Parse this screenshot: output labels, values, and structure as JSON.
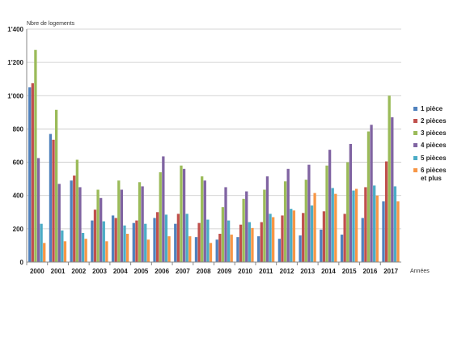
{
  "chart_data": {
    "type": "bar",
    "ylabel": "Nbre de logements",
    "xlabel": "Années",
    "ylim": [
      0,
      1400
    ],
    "yticks": [
      0,
      200,
      400,
      600,
      800,
      1000,
      1200,
      1400
    ],
    "ytick_labels": [
      "0",
      "200",
      "400",
      "600",
      "800",
      "1'000",
      "1'200",
      "1'400"
    ],
    "grid": true,
    "legend_position": "right",
    "categories": [
      "2000",
      "2001",
      "2002",
      "2003",
      "2004",
      "2005",
      "2006",
      "2007",
      "2008",
      "2009",
      "2010",
      "2011",
      "2012",
      "2013",
      "2014",
      "2015",
      "2016",
      "2017"
    ],
    "series": [
      {
        "name": "1 pièce",
        "color": "#4f81bd",
        "values": [
          1050,
          770,
          490,
          250,
          280,
          235,
          265,
          230,
          150,
          135,
          150,
          155,
          140,
          160,
          195,
          165,
          265,
          365
        ]
      },
      {
        "name": "2 pièces",
        "color": "#c0504d",
        "values": [
          1075,
          735,
          520,
          315,
          265,
          250,
          300,
          290,
          235,
          170,
          225,
          240,
          280,
          295,
          305,
          290,
          450,
          605
        ]
      },
      {
        "name": "3 pièces",
        "color": "#9bbb59",
        "values": [
          1275,
          915,
          615,
          435,
          490,
          480,
          540,
          580,
          515,
          330,
          380,
          435,
          485,
          495,
          580,
          600,
          785,
          1000
        ]
      },
      {
        "name": "4 pièces",
        "color": "#8064a2",
        "values": [
          625,
          470,
          450,
          385,
          435,
          455,
          635,
          560,
          490,
          450,
          425,
          515,
          560,
          585,
          675,
          710,
          825,
          870
        ]
      },
      {
        "name": "5 pièces",
        "color": "#4bacc6",
        "values": [
          230,
          190,
          175,
          245,
          220,
          230,
          285,
          290,
          255,
          250,
          240,
          290,
          320,
          340,
          445,
          430,
          460,
          455
        ]
      },
      {
        "name": "6 pièces et plus",
        "color": "#f79646",
        "values": [
          115,
          125,
          140,
          125,
          170,
          135,
          155,
          155,
          115,
          165,
          205,
          270,
          310,
          415,
          410,
          440,
          400,
          365
        ]
      }
    ]
  }
}
